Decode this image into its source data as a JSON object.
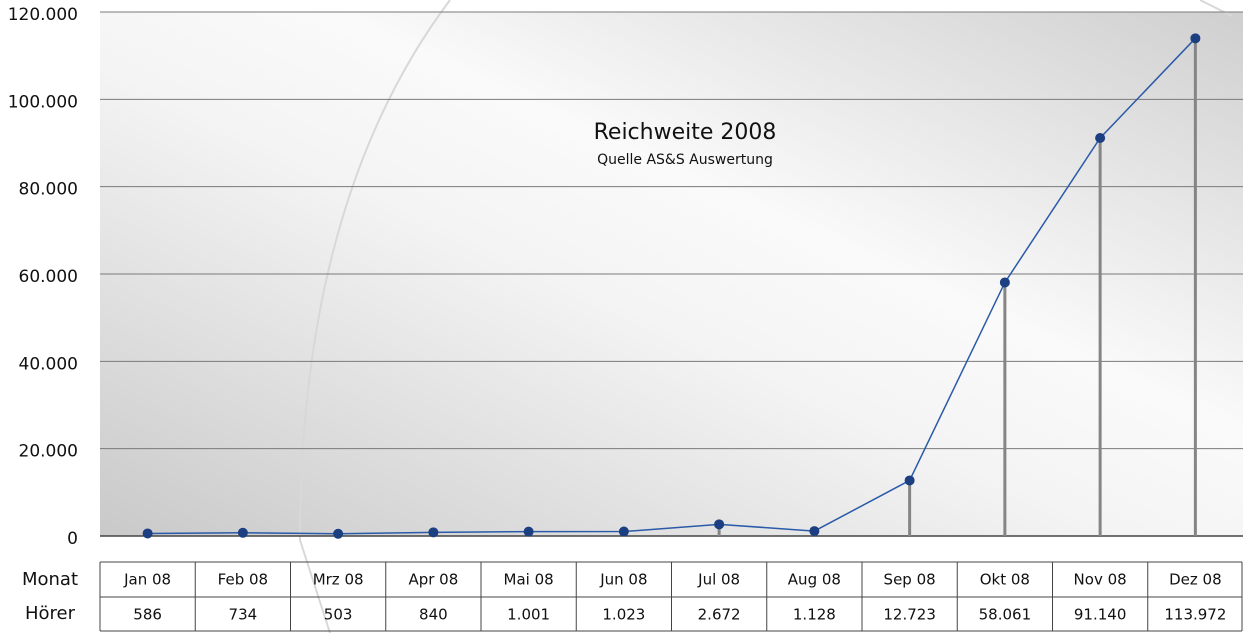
{
  "chart_data": {
    "type": "line",
    "title": "Reichweite 2008",
    "subtitle": "Quelle AS&S Auswertung",
    "category_label": "Monat",
    "categories": [
      "Jan 08",
      "Feb 08",
      "Mrz 08",
      "Apr 08",
      "Mai 08",
      "Jun 08",
      "Jul 08",
      "Aug 08",
      "Sep 08",
      "Okt 08",
      "Nov 08",
      "Dez 08"
    ],
    "series": [
      {
        "name": "Hörer",
        "color": "#2a5aa8",
        "marker_color": "#1b3f80",
        "drop_line_color": "#858585",
        "values": [
          586,
          734,
          503,
          840,
          1001,
          1023,
          2672,
          1128,
          12723,
          58061,
          91140,
          113972
        ],
        "value_labels": [
          "586",
          "734",
          "503",
          "840",
          "1.001",
          "1.023",
          "2.672",
          "1.128",
          "12.723",
          "58.061",
          "91.140",
          "113.972"
        ]
      }
    ],
    "ylim": [
      0,
      120000
    ],
    "yticks": [
      0,
      {
        "value": 20000,
        "label": "20.000"
      },
      {
        "value": 40000,
        "label": "40.000"
      },
      {
        "value": 60000,
        "label": "60.000"
      },
      {
        "value": 80000,
        "label": "80.000"
      },
      {
        "value": 100000,
        "label": "100.000"
      },
      {
        "value": 120000,
        "label": "120.000"
      }
    ],
    "grid": true
  }
}
